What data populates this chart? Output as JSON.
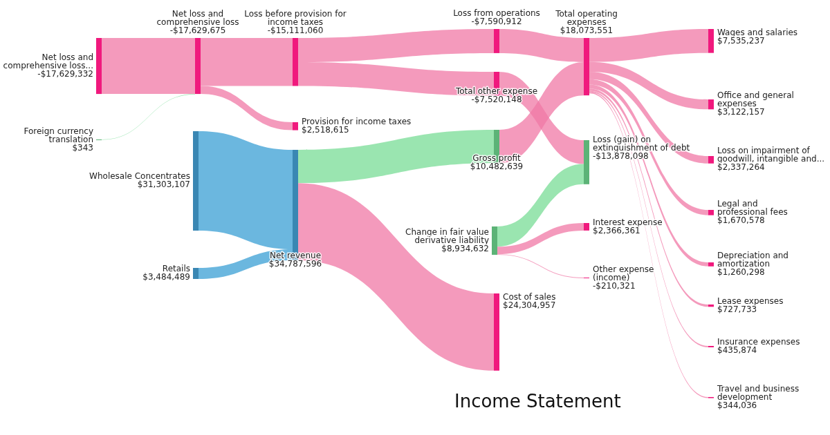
{
  "chart_data": {
    "type": "other",
    "title": "Income Statement",
    "categories": [
      "Net loss and comprehensive loss...",
      "Foreign currency translation",
      "Net loss and comprehensive loss",
      "Wholesale Concentrates",
      "Retails",
      "Loss before provision for income taxes",
      "Provision for income taxes",
      "Net revenue",
      "Loss from operations",
      "Total other expense",
      "Gross profit",
      "Change in fair value derivative liability",
      "Cost of sales",
      "Total operating expenses",
      "Loss (gain) on extinguishment of debt",
      "Interest expense",
      "Other expense (income)",
      "Wages and salaries",
      "Office and general expenses",
      "Loss on impairment of goodwill, intangible and...",
      "Legal and professional fees",
      "Depreciation and amortization",
      "Lease expenses",
      "Insurance expenses",
      "Travel and business development"
    ],
    "values": [
      -17629332,
      343,
      -17629675,
      31303107,
      3484489,
      -15111060,
      2518615,
      34787596,
      -7590912,
      -7520148,
      10482639,
      8934632,
      24304957,
      18073551,
      -13878098,
      2366361,
      -210321,
      7535237,
      3122157,
      2337264,
      1670578,
      1260298,
      727733,
      435874,
      344036
    ],
    "value_labels": [
      "-$17,629,332",
      "$343",
      "-$17,629,675",
      "$31,303,107",
      "$3,484,489",
      "-$15,111,060",
      "$2,518,615",
      "$34,787,596",
      "-$7,590,912",
      "-$7,520,148",
      "$10,482,639",
      "$8,934,632",
      "$24,304,957",
      "$18,073,551",
      "-$13,878,098",
      "$2,366,361",
      "-$210,321",
      "$7,535,237",
      "$3,122,157",
      "$2,337,264",
      "$1,670,578",
      "$1,260,298",
      "$727,733",
      "$435,874",
      "$344,036"
    ],
    "colors": [
      "#f0197d",
      "#5cb377",
      "#f0197d",
      "#3a87b3",
      "#3a87b3",
      "#f0197d",
      "#f0197d",
      "#3a87b3",
      "#f0197d",
      "#f0197d",
      "#5cb377",
      "#5cb377",
      "#f0197d",
      "#f0197d",
      "#5cb377",
      "#f0197d",
      "#f0197d",
      "#f0197d",
      "#f0197d",
      "#f0197d",
      "#f0197d",
      "#f0197d",
      "#f0197d",
      "#f0197d",
      "#f0197d"
    ]
  }
}
